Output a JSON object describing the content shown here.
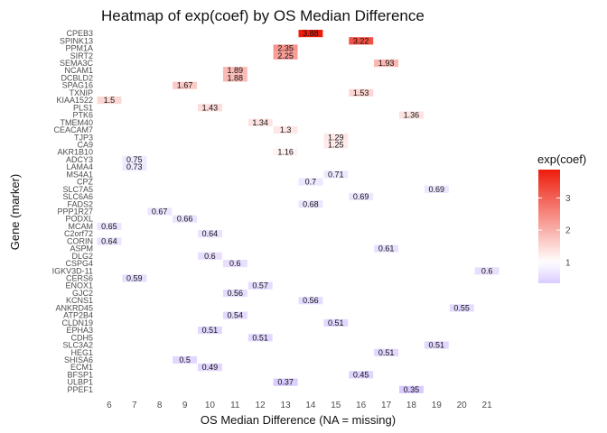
{
  "chart_data": {
    "type": "heatmap",
    "title": "Heatmap of exp(coef) by OS Median Difference",
    "xlabel": "OS Median Difference (NA = missing)",
    "ylabel": "Gene (marker)",
    "x_categories": [
      6,
      7,
      8,
      9,
      10,
      11,
      12,
      13,
      14,
      15,
      16,
      17,
      18,
      19,
      20,
      21
    ],
    "genes": [
      "CPEB3",
      "SPINK13",
      "PPM1A",
      "SIRT2",
      "SEMA3C",
      "NCAM1",
      "DCBLD2",
      "SPAG16",
      "TXNIP",
      "KIAA1522",
      "PLS1",
      "PTK6",
      "TMEM40",
      "CEACAM7",
      "TJP3",
      "CA9",
      "AKR1B10",
      "ADCY3",
      "LAMA4",
      "MS4A1",
      "CPZ",
      "SLC7A5",
      "SLC6A6",
      "FADS2",
      "PPP1R27",
      "PODXL",
      "MCAM",
      "C2orf72",
      "CORIN",
      "ASPM",
      "DLG2",
      "CSPG4",
      "IGKV3D-11",
      "CERS6",
      "ENOX1",
      "GJC2",
      "KCNS1",
      "ANKRD45",
      "ATP2B4",
      "CLDN19",
      "EPHA3",
      "CDH5",
      "SLC3A2",
      "HEG1",
      "SHISA6",
      "ECM1",
      "BFSP1",
      "ULBP1",
      "PPEF1"
    ],
    "cells": [
      {
        "gene": "CPEB3",
        "x": 14,
        "value": 3.88
      },
      {
        "gene": "SPINK13",
        "x": 16,
        "value": 3.22
      },
      {
        "gene": "PPM1A",
        "x": 13,
        "value": 2.35
      },
      {
        "gene": "SIRT2",
        "x": 13,
        "value": 2.25
      },
      {
        "gene": "SEMA3C",
        "x": 17,
        "value": 1.93
      },
      {
        "gene": "NCAM1",
        "x": 11,
        "value": 1.89
      },
      {
        "gene": "DCBLD2",
        "x": 11,
        "value": 1.88
      },
      {
        "gene": "SPAG16",
        "x": 9,
        "value": 1.67
      },
      {
        "gene": "TXNIP",
        "x": 16,
        "value": 1.53
      },
      {
        "gene": "KIAA1522",
        "x": 6,
        "value": 1.5
      },
      {
        "gene": "PLS1",
        "x": 10,
        "value": 1.43
      },
      {
        "gene": "PTK6",
        "x": 18,
        "value": 1.36
      },
      {
        "gene": "TMEM40",
        "x": 12,
        "value": 1.34
      },
      {
        "gene": "CEACAM7",
        "x": 13,
        "value": 1.3
      },
      {
        "gene": "TJP3",
        "x": 15,
        "value": 1.29
      },
      {
        "gene": "CA9",
        "x": 15,
        "value": 1.25
      },
      {
        "gene": "AKR1B10",
        "x": 13,
        "value": 1.16
      },
      {
        "gene": "ADCY3",
        "x": 7,
        "value": 0.75
      },
      {
        "gene": "LAMA4",
        "x": 7,
        "value": 0.73
      },
      {
        "gene": "MS4A1",
        "x": 15,
        "value": 0.71
      },
      {
        "gene": "CPZ",
        "x": 14,
        "value": 0.7
      },
      {
        "gene": "SLC7A5",
        "x": 19,
        "value": 0.69
      },
      {
        "gene": "SLC6A6",
        "x": 16,
        "value": 0.69
      },
      {
        "gene": "FADS2",
        "x": 14,
        "value": 0.68
      },
      {
        "gene": "PPP1R27",
        "x": 8,
        "value": 0.67
      },
      {
        "gene": "PODXL",
        "x": 9,
        "value": 0.66
      },
      {
        "gene": "MCAM",
        "x": 6,
        "value": 0.65
      },
      {
        "gene": "C2orf72",
        "x": 10,
        "value": 0.64
      },
      {
        "gene": "CORIN",
        "x": 6,
        "value": 0.64
      },
      {
        "gene": "ASPM",
        "x": 17,
        "value": 0.61
      },
      {
        "gene": "DLG2",
        "x": 10,
        "value": 0.6
      },
      {
        "gene": "CSPG4",
        "x": 11,
        "value": 0.6
      },
      {
        "gene": "IGKV3D-11",
        "x": 21,
        "value": 0.6
      },
      {
        "gene": "CERS6",
        "x": 7,
        "value": 0.59
      },
      {
        "gene": "ENOX1",
        "x": 12,
        "value": 0.57
      },
      {
        "gene": "GJC2",
        "x": 11,
        "value": 0.56
      },
      {
        "gene": "KCNS1",
        "x": 14,
        "value": 0.56
      },
      {
        "gene": "ANKRD45",
        "x": 20,
        "value": 0.55
      },
      {
        "gene": "ATP2B4",
        "x": 11,
        "value": 0.54
      },
      {
        "gene": "CLDN19",
        "x": 15,
        "value": 0.51
      },
      {
        "gene": "EPHA3",
        "x": 10,
        "value": 0.51
      },
      {
        "gene": "CDH5",
        "x": 12,
        "value": 0.51
      },
      {
        "gene": "SLC3A2",
        "x": 19,
        "value": 0.51
      },
      {
        "gene": "HEG1",
        "x": 17,
        "value": 0.51
      },
      {
        "gene": "SHISA6",
        "x": 9,
        "value": 0.5
      },
      {
        "gene": "ECM1",
        "x": 10,
        "value": 0.49
      },
      {
        "gene": "BFSP1",
        "x": 16,
        "value": 0.45
      },
      {
        "gene": "ULBP1",
        "x": 13,
        "value": 0.37
      },
      {
        "gene": "PPEF1",
        "x": 18,
        "value": 0.35
      }
    ],
    "legend": {
      "title": "exp(coef)",
      "ticks": [
        1,
        2,
        3
      ],
      "range": [
        0.35,
        3.88
      ],
      "midpoint": 1,
      "colors": {
        "low": "#d9cbff",
        "mid": "#ffffff",
        "high": "#ee1c0c"
      },
      "placement": "right"
    },
    "grid": false
  }
}
